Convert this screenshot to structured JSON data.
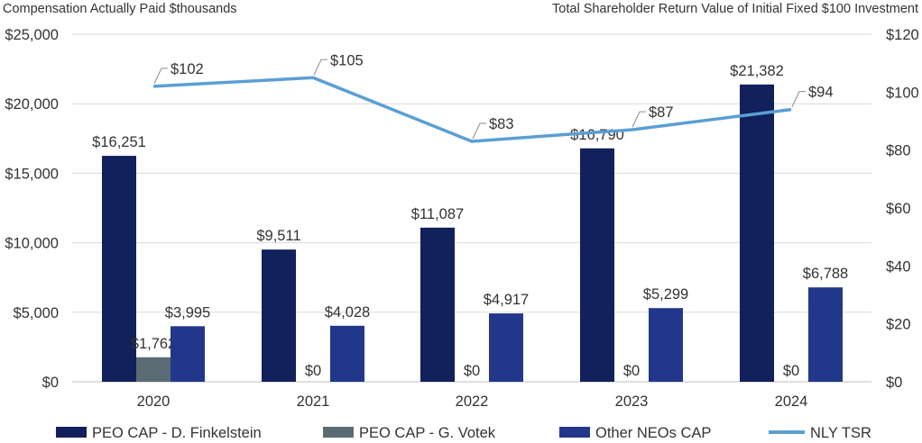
{
  "chart_data": {
    "type": "bar+line",
    "left_axis_title": "Compensation Actually Paid $thousands",
    "right_axis_title": "Total Shareholder Return Value of Initial Fixed $100 Investment",
    "categories": [
      "2020",
      "2021",
      "2022",
      "2023",
      "2024"
    ],
    "left_ylim": [
      0,
      25000
    ],
    "left_ticks": [
      0,
      5000,
      10000,
      15000,
      20000,
      25000
    ],
    "left_tick_labels": [
      "$0",
      "$5,000",
      "$10,000",
      "$15,000",
      "$20,000",
      "$25,000"
    ],
    "right_ylim": [
      0,
      120
    ],
    "right_ticks": [
      0,
      20,
      40,
      60,
      80,
      100,
      120
    ],
    "right_tick_labels": [
      "$0",
      "$20",
      "$40",
      "$60",
      "$80",
      "$100",
      "$120"
    ],
    "grid": true,
    "legend_position": "bottom",
    "colors": {
      "finkelstein": "#12205c",
      "votek": "#5a6b74",
      "other_neos": "#22378a",
      "tsr": "#5a9fd4",
      "grid": "#d9d9d9",
      "text": "#333333"
    },
    "bar_series": [
      {
        "name": "PEO CAP - D. Finkelstein",
        "key": "finkelstein",
        "values": [
          16251,
          9511,
          11087,
          16790,
          21382
        ],
        "labels": [
          "$16,251",
          "$9,511",
          "$11,087",
          "$16,790",
          "$21,382"
        ]
      },
      {
        "name": "PEO CAP - G. Votek",
        "key": "votek",
        "values": [
          1762,
          0,
          0,
          0,
          0
        ],
        "labels": [
          "$1,762",
          "$0",
          "$0",
          "$0",
          "$0"
        ]
      },
      {
        "name": "Other NEOs CAP",
        "key": "other_neos",
        "values": [
          3995,
          4028,
          4917,
          5299,
          6788
        ],
        "labels": [
          "$3,995",
          "$4,028",
          "$4,917",
          "$5,299",
          "$6,788"
        ]
      }
    ],
    "line_series": {
      "name": "NLY TSR",
      "key": "tsr",
      "values": [
        102,
        105,
        83,
        87,
        94
      ],
      "labels": [
        "$102",
        "$105",
        "$83",
        "$87",
        "$94"
      ]
    }
  }
}
